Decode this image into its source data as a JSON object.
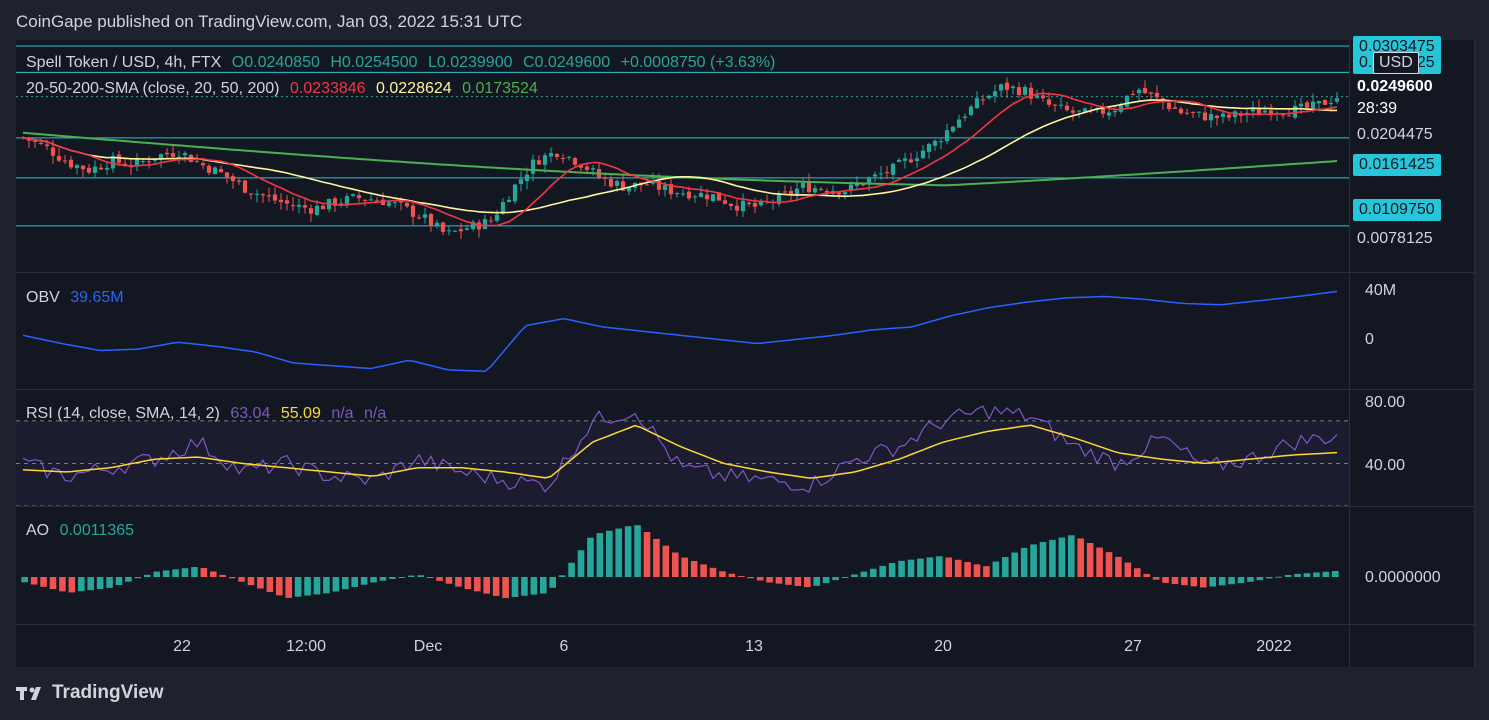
{
  "header": {
    "text": "CoinGape published on TradingView.com, Jan 03, 2022 15:31 UTC"
  },
  "price_pane": {
    "symbol": "Spell Token / USD, 4h, FTX",
    "open": "O0.0240850",
    "high": "H0.0254500",
    "low": "L0.0239900",
    "close": "C0.0249600",
    "change": "+0.0008750 (+3.63%)",
    "sma_label": "20-50-200-SMA (close, 20, 50, 200)",
    "sma20": "0.0233846",
    "sma50": "0.0228624",
    "sma200": "0.0173524",
    "currency": "USD",
    "current_price": "0.0249600",
    "countdown": "28:39",
    "levels": [
      {
        "value": "0.0204475",
        "kind": "plain"
      },
      {
        "value": "0.0161425",
        "kind": "box"
      },
      {
        "value": "0.0109750",
        "kind": "box"
      },
      {
        "value": "0.0078125",
        "kind": "plain"
      }
    ],
    "top_partial": "0.0303475",
    "second_partial": "0.0275125"
  },
  "obv_pane": {
    "label": "OBV",
    "value": "39.65M",
    "ticks": [
      "40M",
      "0"
    ]
  },
  "rsi_pane": {
    "label": "RSI (14, close, SMA, 14, 2)",
    "rsi": "63.04",
    "sma": "55.09",
    "na1": "n/a",
    "na2": "n/a",
    "ticks": [
      "80.00",
      "40.00"
    ]
  },
  "ao_pane": {
    "label": "AO",
    "value": "0.0011365",
    "tick": "0.0000000"
  },
  "x_axis": [
    "22",
    "12:00",
    "Dec",
    "6",
    "13",
    "20",
    "27",
    "2022"
  ],
  "footer": {
    "brand": "TradingView"
  },
  "colors": {
    "up": "#26a69a",
    "down": "#ef5350",
    "sma20": "#f23645",
    "sma50": "#fff59d",
    "sma200": "#4caf50",
    "obv": "#2962ff",
    "rsi": "#7e57c2",
    "rsi_sma": "#fdd835",
    "level": "#26c6da"
  },
  "chart_data": [
    {
      "type": "candlestick",
      "title": "Spell Token / USD, 4h, FTX",
      "x_ticks": [
        "22",
        "12:00",
        "Dec",
        "6",
        "13",
        "20",
        "27",
        "2022"
      ],
      "close_path": [
        0.0205,
        0.0195,
        0.0178,
        0.017,
        0.018,
        0.0175,
        0.0185,
        0.019,
        0.0176,
        0.0165,
        0.015,
        0.014,
        0.0132,
        0.0128,
        0.0135,
        0.014,
        0.0138,
        0.013,
        0.0118,
        0.01,
        0.0108,
        0.0115,
        0.015,
        0.018,
        0.019,
        0.0178,
        0.016,
        0.0152,
        0.0155,
        0.0148,
        0.0145,
        0.0142,
        0.0132,
        0.013,
        0.014,
        0.0152,
        0.015,
        0.0148,
        0.016,
        0.017,
        0.0185,
        0.02,
        0.0225,
        0.0245,
        0.026,
        0.0255,
        0.024,
        0.0232,
        0.023,
        0.0236,
        0.0258,
        0.0245,
        0.0232,
        0.0228,
        0.0226,
        0.0232,
        0.0235,
        0.0234,
        0.0238,
        0.0249
      ],
      "sma20": "0.0233846",
      "sma50": "0.0228624",
      "sma200": "0.0173524",
      "levels": [
        0.0303475,
        0.0275125,
        0.0204475,
        0.0161425,
        0.010975
      ]
    },
    {
      "type": "line",
      "title": "OBV",
      "unit": "M",
      "values": [
        8,
        2,
        -3,
        -2,
        3,
        0,
        -4,
        -12,
        -14,
        -16,
        -10,
        -17,
        -18,
        15,
        20,
        14,
        11,
        8,
        5,
        2,
        5,
        8,
        12,
        14,
        22,
        28,
        32,
        35,
        36,
        34,
        31,
        30,
        33,
        36,
        39.65
      ]
    },
    {
      "type": "line",
      "title": "RSI (14, close, SMA, 14, 2)",
      "ylim": [
        30,
        85
      ],
      "rsi": [
        50,
        44,
        48,
        52,
        60,
        46,
        50,
        44,
        42,
        52,
        46,
        42,
        40,
        70,
        75,
        48,
        44,
        42,
        40,
        52,
        58,
        70,
        75,
        72,
        58,
        50,
        62,
        48,
        52,
        60,
        63.04
      ],
      "sma": [
        47,
        46,
        48,
        52,
        53,
        50,
        48,
        46,
        44,
        48,
        48,
        46,
        43,
        60,
        68,
        58,
        50,
        46,
        43,
        46,
        52,
        60,
        65,
        68,
        62,
        55,
        52,
        50,
        52,
        54,
        55.09
      ]
    },
    {
      "type": "bar",
      "title": "AO",
      "values": [
        -0.001,
        -0.003,
        -0.002,
        0.001,
        0.002,
        -0.001,
        -0.004,
        -0.003,
        -0.001,
        0.0005,
        -0.002,
        -0.004,
        -0.003,
        0.008,
        0.01,
        0.004,
        0.001,
        -0.001,
        -0.002,
        0.0005,
        0.003,
        0.004,
        0.002,
        0.006,
        0.008,
        0.004,
        -0.001,
        -0.002,
        -0.001,
        0.0005,
        0.0011365
      ]
    }
  ]
}
